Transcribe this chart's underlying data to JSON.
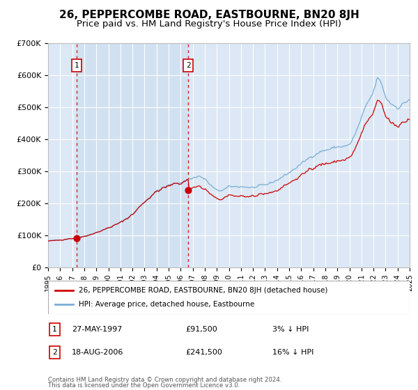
{
  "title": "26, PEPPERCOMBE ROAD, EASTBOURNE, BN20 8JH",
  "subtitle": "Price paid vs. HM Land Registry's House Price Index (HPI)",
  "legend_label_red": "26, PEPPERCOMBE ROAD, EASTBOURNE, BN20 8JH (detached house)",
  "legend_label_blue": "HPI: Average price, detached house, Eastbourne",
  "transaction1_date": "27-MAY-1997",
  "transaction1_price": "£91,500",
  "transaction1_hpi": "3% ↓ HPI",
  "transaction1_year": 1997.38,
  "transaction1_value": 91500,
  "transaction2_date": "18-AUG-2006",
  "transaction2_price": "£241,500",
  "transaction2_hpi": "16% ↓ HPI",
  "transaction2_year": 2006.63,
  "transaction2_value": 241500,
  "footnote1": "Contains HM Land Registry data © Crown copyright and database right 2024.",
  "footnote2": "This data is licensed under the Open Government Licence v3.0.",
  "ylim_min": 0,
  "ylim_max": 700000,
  "xlim_min": 1995.0,
  "xlim_max": 2025.0,
  "fig_bg_color": "#ffffff",
  "plot_bg_color": "#dce8f5",
  "shaded_region_color": "#dce8f5",
  "grid_color": "#ffffff",
  "red_line_color": "#cc0000",
  "blue_line_color": "#7aadd4",
  "title_fontsize": 11,
  "subtitle_fontsize": 9.5
}
